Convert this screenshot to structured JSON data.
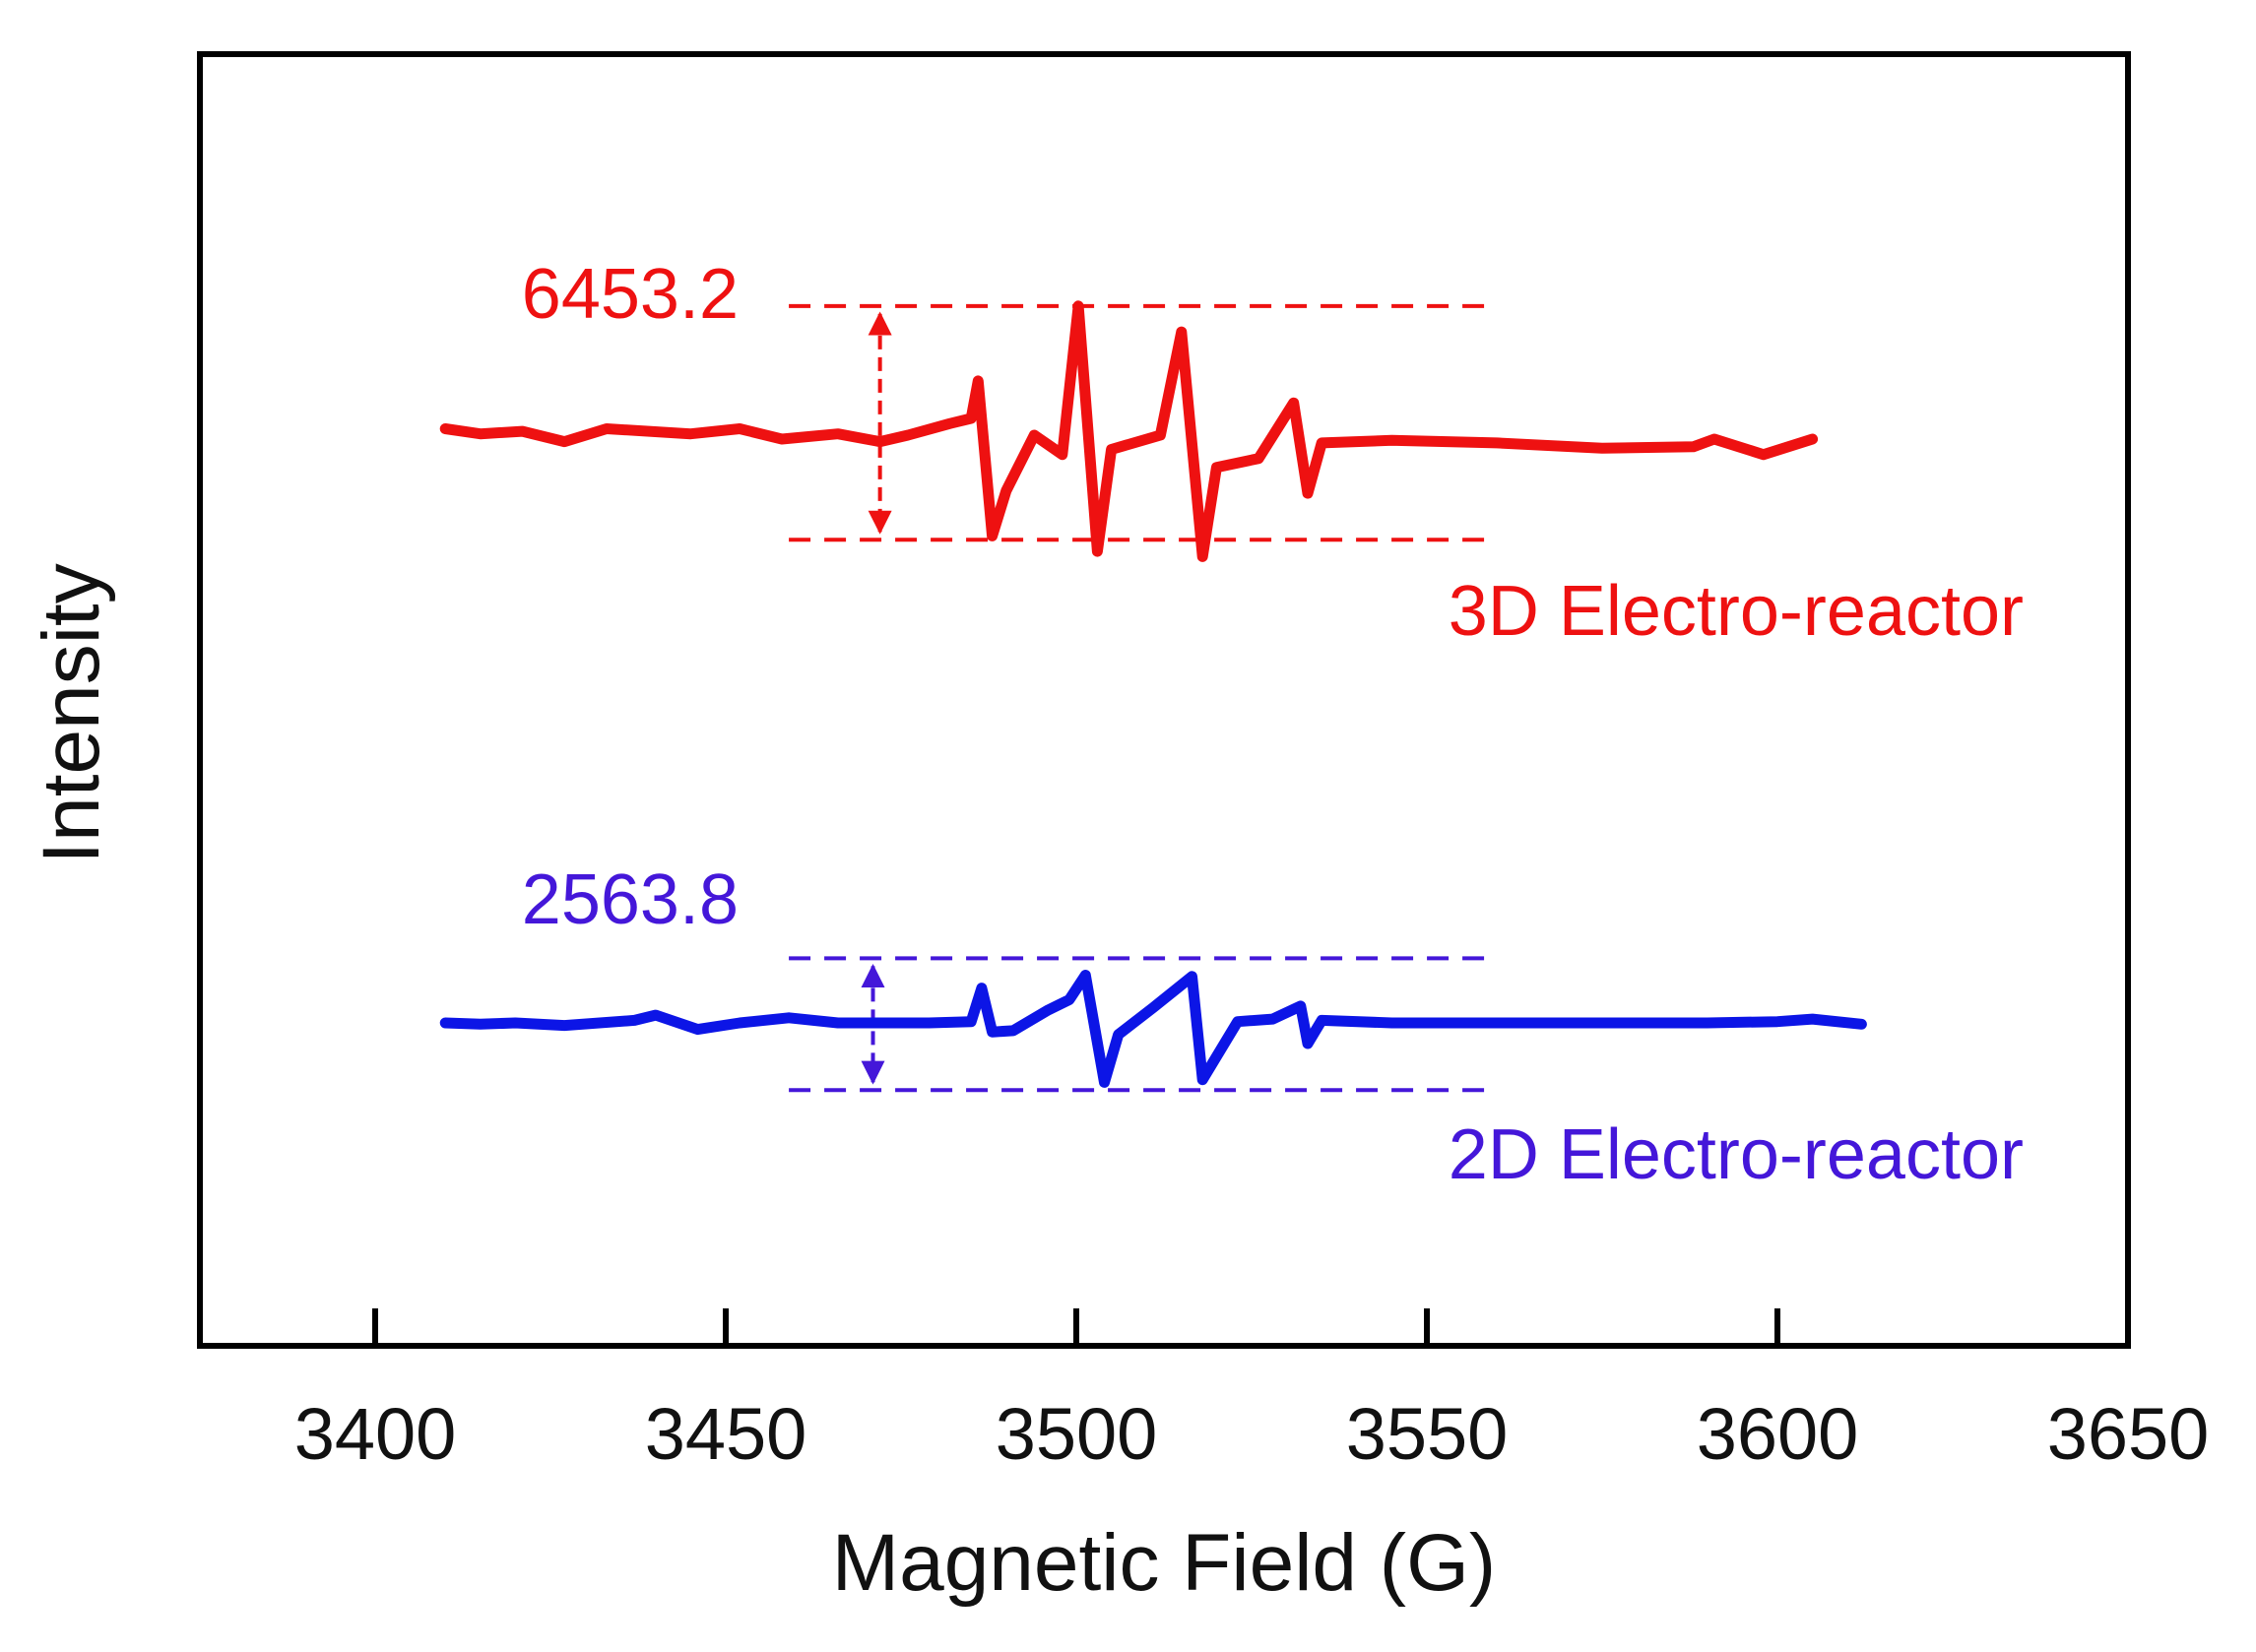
{
  "chart_data": {
    "type": "line",
    "title": "",
    "xlabel": "Magnetic Field (G)",
    "ylabel": "Intensity",
    "xlim": [
      3375,
      3650
    ],
    "ylim": [
      0,
      100
    ],
    "x_ticks": [
      3400,
      3450,
      3500,
      3550,
      3600,
      3650
    ],
    "y_ticks_shown": false,
    "grid": false,
    "series": [
      {
        "name": "3D Electro-reactor",
        "color": "#ee1111",
        "x": [
          3410,
          3415,
          3421,
          3427,
          3433,
          3445,
          3452,
          3458,
          3466,
          3472,
          3476,
          3482,
          3485,
          3486,
          3488,
          3490,
          3494,
          3498,
          3500.3,
          3503,
          3505,
          3512,
          3515,
          3518,
          3520,
          3526,
          3531,
          3533,
          3535,
          3545,
          3560,
          3575,
          3588,
          3591,
          3598,
          3605
        ],
        "y": [
          71.0,
          70.6,
          70.8,
          70.0,
          71.0,
          70.6,
          71.0,
          70.2,
          70.6,
          70.0,
          70.5,
          71.4,
          71.8,
          74.7,
          62.7,
          66.2,
          70.5,
          69.0,
          80.5,
          61.5,
          69.4,
          70.5,
          78.5,
          61.1,
          68.0,
          68.7,
          73.0,
          66.0,
          69.9,
          70.1,
          69.9,
          69.5,
          69.6,
          70.2,
          69.0,
          70.2
        ]
      },
      {
        "name": "2D Electro-reactor",
        "color": "#0c15e6",
        "x": [
          3410,
          3415,
          3420,
          3427,
          3437,
          3440,
          3446,
          3452,
          3459,
          3466,
          3470,
          3479,
          3485,
          3486.5,
          3488,
          3491,
          3496,
          3499,
          3501.3,
          3504,
          3506,
          3511,
          3516.5,
          3518,
          3523,
          3528,
          3532,
          3533,
          3535,
          3545,
          3560,
          3575,
          3590,
          3600,
          3605,
          3612
        ],
        "y": [
          25.0,
          24.9,
          25.0,
          24.8,
          25.2,
          25.6,
          24.5,
          25.0,
          25.4,
          25.0,
          25.0,
          25.0,
          25.1,
          27.7,
          24.3,
          24.4,
          26.0,
          26.8,
          28.7,
          20.4,
          24.1,
          26.2,
          28.6,
          20.6,
          25.1,
          25.3,
          26.3,
          23.4,
          25.2,
          25.0,
          25.0,
          25.0,
          25.0,
          25.1,
          25.3,
          24.9
        ]
      }
    ],
    "annotations": [
      {
        "name": "3D Electro-reactor",
        "text": "6453.2",
        "color": "#ee1111",
        "arrow_x": 3472,
        "line_x_range": [
          3459,
          3560
        ],
        "y_top": 80.5,
        "y_bottom": 62.4
      },
      {
        "name": "2D Electro-reactor",
        "text": "2563.8",
        "color": "#4417d9",
        "arrow_x": 3471,
        "line_x_range": [
          3459,
          3560
        ],
        "y_top": 30.0,
        "y_bottom": 19.8
      }
    ],
    "legend": [
      {
        "label": "3D Electro-reactor",
        "color": "#ee1111",
        "placement": "below-right of upper trace"
      },
      {
        "label": "2D Electro-reactor",
        "color": "#4417d9",
        "placement": "below-right of lower trace"
      }
    ]
  }
}
